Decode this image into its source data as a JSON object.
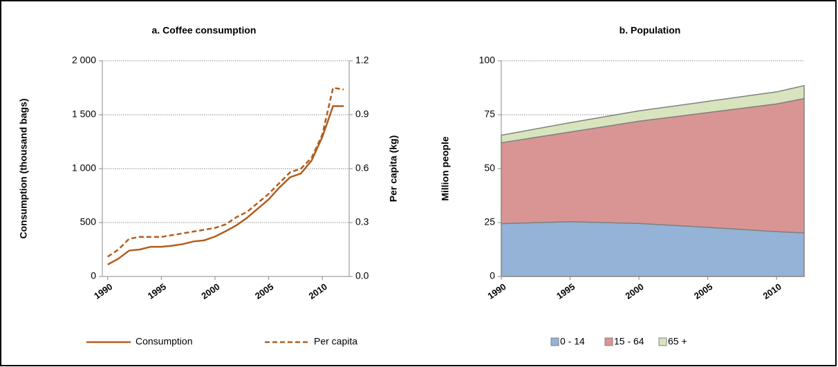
{
  "chart_data": [
    {
      "type": "line",
      "title": "a. Coffee consumption",
      "ylabel": "Consumption  (thousand  bags)",
      "y2label": "Per capita  (kg)",
      "x": [
        1990,
        1991,
        1992,
        1993,
        1994,
        1995,
        1996,
        1997,
        1998,
        1999,
        2000,
        2001,
        2002,
        2003,
        2004,
        2005,
        2006,
        2007,
        2008,
        2009,
        2010,
        2011,
        2012
      ],
      "xlim": [
        1989.5,
        2012.5
      ],
      "xticks": [
        1990,
        1995,
        2000,
        2005,
        2010
      ],
      "ylim": [
        0,
        2000
      ],
      "yticks": [
        0,
        500,
        {
          "value": 1000,
          "label": "1 000"
        },
        {
          "value": 1500,
          "label": "1 500"
        },
        {
          "value": 2000,
          "label": "2 000"
        }
      ],
      "y2lim": [
        0,
        1.2
      ],
      "y2ticks": [
        {
          "value": 0,
          "label": "0.0"
        },
        0.3,
        0.6,
        0.9,
        1.2
      ],
      "grid": true,
      "legend": "bottom",
      "series": [
        {
          "name": "Consumption",
          "color": "#b15d1d",
          "line_style": "solid",
          "values": [
            110,
            165,
            240,
            250,
            275,
            275,
            285,
            300,
            325,
            335,
            370,
            420,
            475,
            545,
            630,
            715,
            825,
            920,
            955,
            1075,
            1295,
            1580,
            1580
          ]
        },
        {
          "name": "Per capita",
          "color": "#b15d1d",
          "line_style": "dashed",
          "axis": "y2",
          "values": [
            0.11,
            0.15,
            0.21,
            0.22,
            0.22,
            0.22,
            0.23,
            0.24,
            0.25,
            0.26,
            0.27,
            0.29,
            0.33,
            0.36,
            0.41,
            0.46,
            0.52,
            0.58,
            0.6,
            0.66,
            0.79,
            1.05,
            1.04
          ]
        }
      ]
    },
    {
      "type": "area",
      "stacked": true,
      "title": "b. Population",
      "ylabel": "Million people",
      "x": [
        1990,
        1995,
        2000,
        2005,
        2010,
        2012
      ],
      "xlim": [
        1990,
        2012
      ],
      "xticks": [
        1990,
        1995,
        2000,
        2005,
        2010
      ],
      "ylim": [
        0,
        100
      ],
      "yticks": [
        0,
        25,
        50,
        75,
        100
      ],
      "grid": true,
      "legend": "bottom",
      "series": [
        {
          "name": "0 - 14",
          "color": "#95b3d7",
          "values": [
            24.5,
            25.4,
            24.6,
            22.8,
            20.8,
            20.2
          ]
        },
        {
          "name": "15 - 64",
          "color": "#d99594",
          "values": [
            37.5,
            41.6,
            47.4,
            53.2,
            59.2,
            62.3
          ]
        },
        {
          "name": "65 +",
          "color": "#d7e4bd",
          "values": [
            3.5,
            4.3,
            4.8,
            5.2,
            5.6,
            6.0
          ]
        }
      ]
    }
  ]
}
